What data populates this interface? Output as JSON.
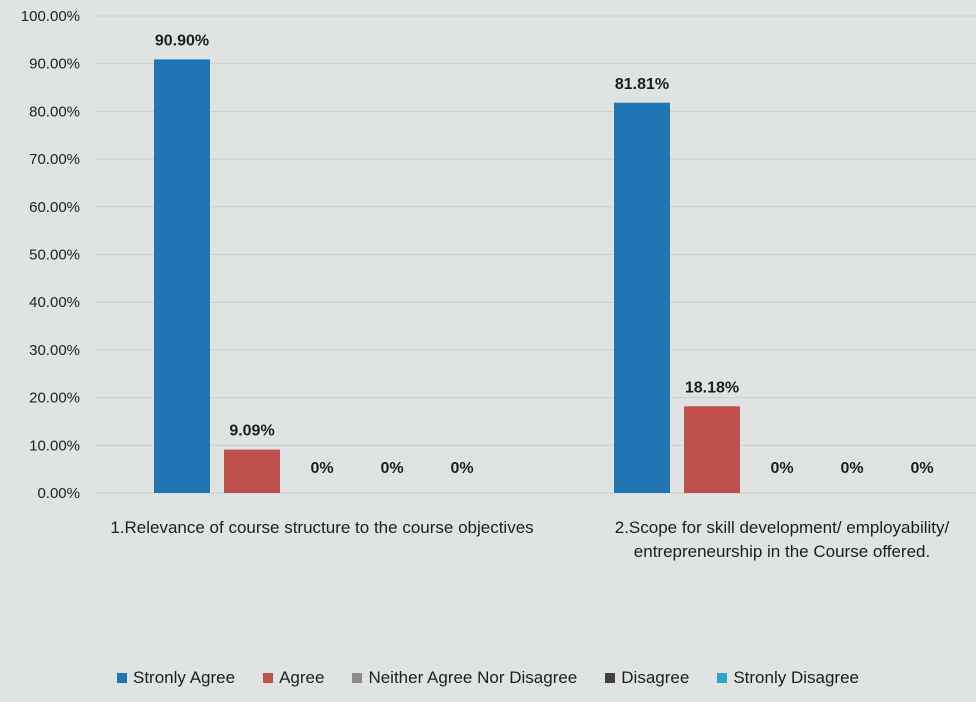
{
  "chart_data": {
    "type": "bar",
    "categories": [
      [
        "1.Relevance of course structure to the course objectives"
      ],
      [
        "2.Scope for skill development/ employability/",
        "entrepreneurship in the Course offered."
      ]
    ],
    "series": [
      {
        "name": "Stronly Agree",
        "color": "#1f75b4",
        "values": [
          90.9,
          81.81
        ],
        "labels": [
          "90.90%",
          "81.81%"
        ]
      },
      {
        "name": "Agree",
        "color": "#c0504d",
        "values": [
          9.09,
          18.18
        ],
        "labels": [
          "9.09%",
          "18.18%"
        ]
      },
      {
        "name": "Neither Agree Nor Disagree",
        "color": "#8c8c8c",
        "values": [
          0,
          0
        ],
        "labels": [
          "0%",
          "0%"
        ]
      },
      {
        "name": "Disagree",
        "color": "#404040",
        "values": [
          0,
          0
        ],
        "labels": [
          "0%",
          "0%"
        ]
      },
      {
        "name": "Stronly Disagree",
        "color": "#2fa3cf",
        "values": [
          0,
          0
        ],
        "labels": [
          "0%",
          "0%"
        ]
      }
    ],
    "ylim": [
      0,
      100
    ],
    "yticks": [
      "0.00%",
      "10.00%",
      "20.00%",
      "30.00%",
      "40.00%",
      "50.00%",
      "60.00%",
      "70.00%",
      "80.00%",
      "90.00%",
      "100.00%"
    ],
    "grid": true,
    "legend_position": "bottom"
  }
}
